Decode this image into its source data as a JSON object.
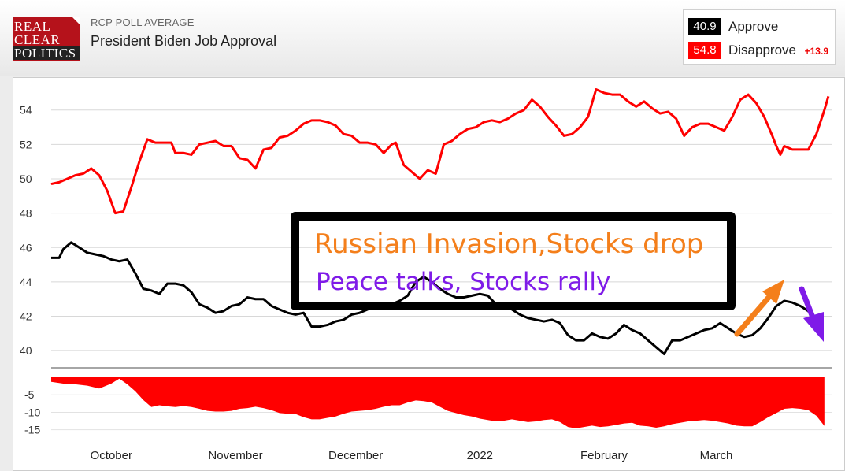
{
  "header": {
    "logo_lines": [
      "REAL",
      "CLEAR",
      "POLITICS"
    ],
    "kicker": "RCP POLL AVERAGE",
    "title": "President Biden Job Approval"
  },
  "legend": {
    "approve": {
      "value": "40.9",
      "label": "Approve",
      "color": "#000000"
    },
    "disapprove": {
      "value": "54.8",
      "label": "Disapprove",
      "color": "#ff0000"
    },
    "spread": "+13.9"
  },
  "annotations": {
    "line1": "Russian Invasion,Stocks drop",
    "line2": "Peace talks, Stocks rally",
    "line1_color": "#f47f1b",
    "line2_color": "#7f1be8",
    "arrow_up_color": "#f47f1b",
    "arrow_down_color": "#7f1be8"
  },
  "chart_data": [
    {
      "type": "line",
      "title": "",
      "x_label": "",
      "y_label": "",
      "x_ticks": [
        "October",
        "November",
        "December",
        "2022",
        "February",
        "March"
      ],
      "x_tick_days": [
        15,
        46,
        76,
        107,
        138,
        166
      ],
      "x_range_days": [
        0,
        195
      ],
      "ylim": [
        39,
        55.5
      ],
      "y_ticks": [
        40,
        42,
        44,
        46,
        48,
        50,
        52,
        54
      ],
      "grid": true,
      "series": [
        {
          "name": "Disapprove",
          "color": "#ff0000",
          "points": [
            [
              0,
              49.7
            ],
            [
              2,
              49.8
            ],
            [
              4,
              50.0
            ],
            [
              6,
              50.2
            ],
            [
              8,
              50.3
            ],
            [
              10,
              50.6
            ],
            [
              12,
              50.2
            ],
            [
              14,
              49.3
            ],
            [
              16,
              48.0
            ],
            [
              18,
              48.1
            ],
            [
              20,
              49.5
            ],
            [
              22,
              51.0
            ],
            [
              24,
              52.3
            ],
            [
              26,
              52.1
            ],
            [
              28,
              52.1
            ],
            [
              30,
              52.1
            ],
            [
              31,
              51.5
            ],
            [
              33,
              51.5
            ],
            [
              35,
              51.4
            ],
            [
              37,
              52.0
            ],
            [
              39,
              52.1
            ],
            [
              41,
              52.2
            ],
            [
              43,
              51.9
            ],
            [
              45,
              51.9
            ],
            [
              47,
              51.2
            ],
            [
              49,
              51.1
            ],
            [
              51,
              50.6
            ],
            [
              53,
              51.7
            ],
            [
              55,
              51.8
            ],
            [
              57,
              52.4
            ],
            [
              59,
              52.5
            ],
            [
              61,
              52.8
            ],
            [
              63,
              53.2
            ],
            [
              65,
              53.4
            ],
            [
              67,
              53.4
            ],
            [
              69,
              53.3
            ],
            [
              71,
              53.1
            ],
            [
              73,
              52.6
            ],
            [
              75,
              52.5
            ],
            [
              77,
              52.1
            ],
            [
              79,
              52.1
            ],
            [
              81,
              52.0
            ],
            [
              83,
              51.5
            ],
            [
              85,
              52.0
            ],
            [
              86,
              52.1
            ],
            [
              88,
              50.8
            ],
            [
              90,
              50.4
            ],
            [
              92,
              50.0
            ],
            [
              94,
              50.5
            ],
            [
              96,
              50.3
            ],
            [
              98,
              52.0
            ],
            [
              100,
              52.2
            ],
            [
              102,
              52.6
            ],
            [
              104,
              52.9
            ],
            [
              106,
              53.0
            ],
            [
              108,
              53.3
            ],
            [
              110,
              53.4
            ],
            [
              112,
              53.3
            ],
            [
              114,
              53.5
            ],
            [
              116,
              53.8
            ],
            [
              118,
              54.0
            ],
            [
              120,
              54.6
            ],
            [
              122,
              54.2
            ],
            [
              124,
              53.6
            ],
            [
              126,
              53.1
            ],
            [
              128,
              52.5
            ],
            [
              130,
              52.6
            ],
            [
              132,
              53.0
            ],
            [
              134,
              53.6
            ],
            [
              136,
              55.2
            ],
            [
              138,
              55.0
            ],
            [
              140,
              54.9
            ],
            [
              142,
              54.9
            ],
            [
              144,
              54.5
            ],
            [
              146,
              54.2
            ],
            [
              148,
              54.5
            ],
            [
              150,
              54.1
            ],
            [
              152,
              53.8
            ],
            [
              154,
              53.9
            ],
            [
              156,
              53.5
            ],
            [
              158,
              52.5
            ],
            [
              160,
              53.0
            ],
            [
              162,
              53.2
            ],
            [
              164,
              53.2
            ],
            [
              166,
              53.0
            ],
            [
              168,
              52.8
            ],
            [
              170,
              53.6
            ],
            [
              172,
              54.6
            ],
            [
              174,
              54.9
            ],
            [
              176,
              54.4
            ],
            [
              178,
              53.6
            ],
            [
              180,
              52.5
            ],
            [
              181,
              51.9
            ],
            [
              182,
              51.4
            ],
            [
              183,
              51.9
            ],
            [
              185,
              51.7
            ],
            [
              187,
              51.7
            ],
            [
              189,
              51.7
            ],
            [
              191,
              52.6
            ],
            [
              193,
              54.0
            ],
            [
              194,
              54.8
            ]
          ]
        },
        {
          "name": "Approve",
          "color": "#000000",
          "points": [
            [
              0,
              45.4
            ],
            [
              2,
              45.4
            ],
            [
              3,
              45.9
            ],
            [
              5,
              46.3
            ],
            [
              7,
              46.0
            ],
            [
              9,
              45.7
            ],
            [
              11,
              45.6
            ],
            [
              13,
              45.5
            ],
            [
              15,
              45.3
            ],
            [
              17,
              45.2
            ],
            [
              19,
              45.3
            ],
            [
              21,
              44.5
            ],
            [
              23,
              43.6
            ],
            [
              25,
              43.5
            ],
            [
              27,
              43.3
            ],
            [
              29,
              43.9
            ],
            [
              31,
              43.9
            ],
            [
              33,
              43.8
            ],
            [
              35,
              43.4
            ],
            [
              37,
              42.7
            ],
            [
              39,
              42.5
            ],
            [
              41,
              42.2
            ],
            [
              43,
              42.3
            ],
            [
              45,
              42.6
            ],
            [
              47,
              42.7
            ],
            [
              49,
              43.1
            ],
            [
              51,
              43.0
            ],
            [
              53,
              43.0
            ],
            [
              55,
              42.6
            ],
            [
              57,
              42.4
            ],
            [
              59,
              42.2
            ],
            [
              61,
              42.1
            ],
            [
              63,
              42.2
            ],
            [
              65,
              41.4
            ],
            [
              67,
              41.4
            ],
            [
              69,
              41.5
            ],
            [
              71,
              41.7
            ],
            [
              73,
              41.8
            ],
            [
              75,
              42.1
            ],
            [
              77,
              42.2
            ],
            [
              79,
              42.4
            ],
            [
              81,
              42.5
            ],
            [
              83,
              42.6
            ],
            [
              85,
              42.7
            ],
            [
              87,
              42.9
            ],
            [
              89,
              43.2
            ],
            [
              91,
              44.0
            ],
            [
              93,
              44.3
            ],
            [
              95,
              44.0
            ],
            [
              97,
              43.6
            ],
            [
              99,
              43.3
            ],
            [
              101,
              43.1
            ],
            [
              103,
              43.1
            ],
            [
              105,
              43.2
            ],
            [
              107,
              43.3
            ],
            [
              109,
              43.2
            ],
            [
              111,
              42.7
            ],
            [
              113,
              42.5
            ],
            [
              115,
              42.4
            ],
            [
              117,
              42.1
            ],
            [
              119,
              41.9
            ],
            [
              121,
              41.8
            ],
            [
              123,
              41.7
            ],
            [
              125,
              41.8
            ],
            [
              127,
              41.6
            ],
            [
              129,
              40.9
            ],
            [
              131,
              40.6
            ],
            [
              133,
              40.6
            ],
            [
              135,
              41.0
            ],
            [
              137,
              40.8
            ],
            [
              139,
              40.7
            ],
            [
              141,
              41.0
            ],
            [
              143,
              41.5
            ],
            [
              145,
              41.2
            ],
            [
              147,
              41.0
            ],
            [
              149,
              40.6
            ],
            [
              151,
              40.2
            ],
            [
              153,
              39.8
            ],
            [
              155,
              40.6
            ],
            [
              157,
              40.6
            ],
            [
              159,
              40.8
            ],
            [
              161,
              41.0
            ],
            [
              163,
              41.2
            ],
            [
              165,
              41.3
            ],
            [
              167,
              41.6
            ],
            [
              169,
              41.3
            ],
            [
              171,
              41.0
            ],
            [
              173,
              40.8
            ],
            [
              175,
              40.9
            ],
            [
              177,
              41.3
            ],
            [
              179,
              41.9
            ],
            [
              181,
              42.6
            ],
            [
              183,
              42.9
            ],
            [
              185,
              42.8
            ],
            [
              187,
              42.6
            ],
            [
              189,
              42.3
            ],
            [
              191,
              41.6
            ],
            [
              192,
              40.9
            ]
          ]
        }
      ]
    },
    {
      "type": "area",
      "title": "",
      "name": "Spread",
      "color": "#ff0000",
      "ylim": [
        -18,
        0
      ],
      "y_ticks": [
        -5,
        -10,
        -15
      ],
      "points": [
        [
          0,
          -1.3
        ],
        [
          3,
          -1.8
        ],
        [
          6,
          -2.0
        ],
        [
          9,
          -2.4
        ],
        [
          12,
          -3.2
        ],
        [
          15,
          -1.8
        ],
        [
          17,
          -0.4
        ],
        [
          19,
          -2.0
        ],
        [
          21,
          -4.0
        ],
        [
          23,
          -6.5
        ],
        [
          25,
          -8.5
        ],
        [
          27,
          -8.0
        ],
        [
          29,
          -8.3
        ],
        [
          31,
          -8.5
        ],
        [
          33,
          -8.2
        ],
        [
          35,
          -8.5
        ],
        [
          37,
          -9.0
        ],
        [
          39,
          -9.6
        ],
        [
          41,
          -9.8
        ],
        [
          43,
          -9.8
        ],
        [
          45,
          -9.6
        ],
        [
          47,
          -9.0
        ],
        [
          49,
          -8.8
        ],
        [
          51,
          -8.4
        ],
        [
          53,
          -8.8
        ],
        [
          55,
          -9.4
        ],
        [
          57,
          -10.2
        ],
        [
          59,
          -10.4
        ],
        [
          61,
          -10.5
        ],
        [
          63,
          -11.4
        ],
        [
          65,
          -12.0
        ],
        [
          67,
          -12.0
        ],
        [
          69,
          -11.6
        ],
        [
          71,
          -11.2
        ],
        [
          73,
          -10.4
        ],
        [
          75,
          -9.8
        ],
        [
          77,
          -9.6
        ],
        [
          79,
          -9.4
        ],
        [
          81,
          -9.0
        ],
        [
          83,
          -8.4
        ],
        [
          85,
          -8.0
        ],
        [
          87,
          -8.0
        ],
        [
          89,
          -7.2
        ],
        [
          91,
          -6.6
        ],
        [
          93,
          -6.8
        ],
        [
          95,
          -7.2
        ],
        [
          97,
          -8.4
        ],
        [
          99,
          -9.6
        ],
        [
          101,
          -10.2
        ],
        [
          103,
          -10.8
        ],
        [
          105,
          -11.2
        ],
        [
          107,
          -11.8
        ],
        [
          109,
          -12.2
        ],
        [
          111,
          -12.6
        ],
        [
          113,
          -12.4
        ],
        [
          115,
          -12.0
        ],
        [
          117,
          -12.4
        ],
        [
          119,
          -12.8
        ],
        [
          121,
          -12.6
        ],
        [
          123,
          -12.2
        ],
        [
          125,
          -12.0
        ],
        [
          127,
          -12.8
        ],
        [
          129,
          -14.2
        ],
        [
          131,
          -14.6
        ],
        [
          133,
          -14.2
        ],
        [
          135,
          -13.8
        ],
        [
          137,
          -14.2
        ],
        [
          139,
          -14.0
        ],
        [
          141,
          -13.6
        ],
        [
          143,
          -13.2
        ],
        [
          145,
          -13.0
        ],
        [
          147,
          -13.8
        ],
        [
          149,
          -14.0
        ],
        [
          151,
          -14.4
        ],
        [
          153,
          -14.0
        ],
        [
          155,
          -13.4
        ],
        [
          157,
          -13.0
        ],
        [
          159,
          -12.6
        ],
        [
          161,
          -12.4
        ],
        [
          163,
          -12.2
        ],
        [
          165,
          -12.4
        ],
        [
          167,
          -12.8
        ],
        [
          169,
          -13.2
        ],
        [
          171,
          -13.8
        ],
        [
          173,
          -14.0
        ],
        [
          175,
          -14.0
        ],
        [
          177,
          -12.8
        ],
        [
          179,
          -11.4
        ],
        [
          181,
          -10.2
        ],
        [
          183,
          -9.0
        ],
        [
          185,
          -8.8
        ],
        [
          187,
          -9.0
        ],
        [
          189,
          -9.4
        ],
        [
          191,
          -11.0
        ],
        [
          193,
          -13.9
        ]
      ]
    }
  ]
}
